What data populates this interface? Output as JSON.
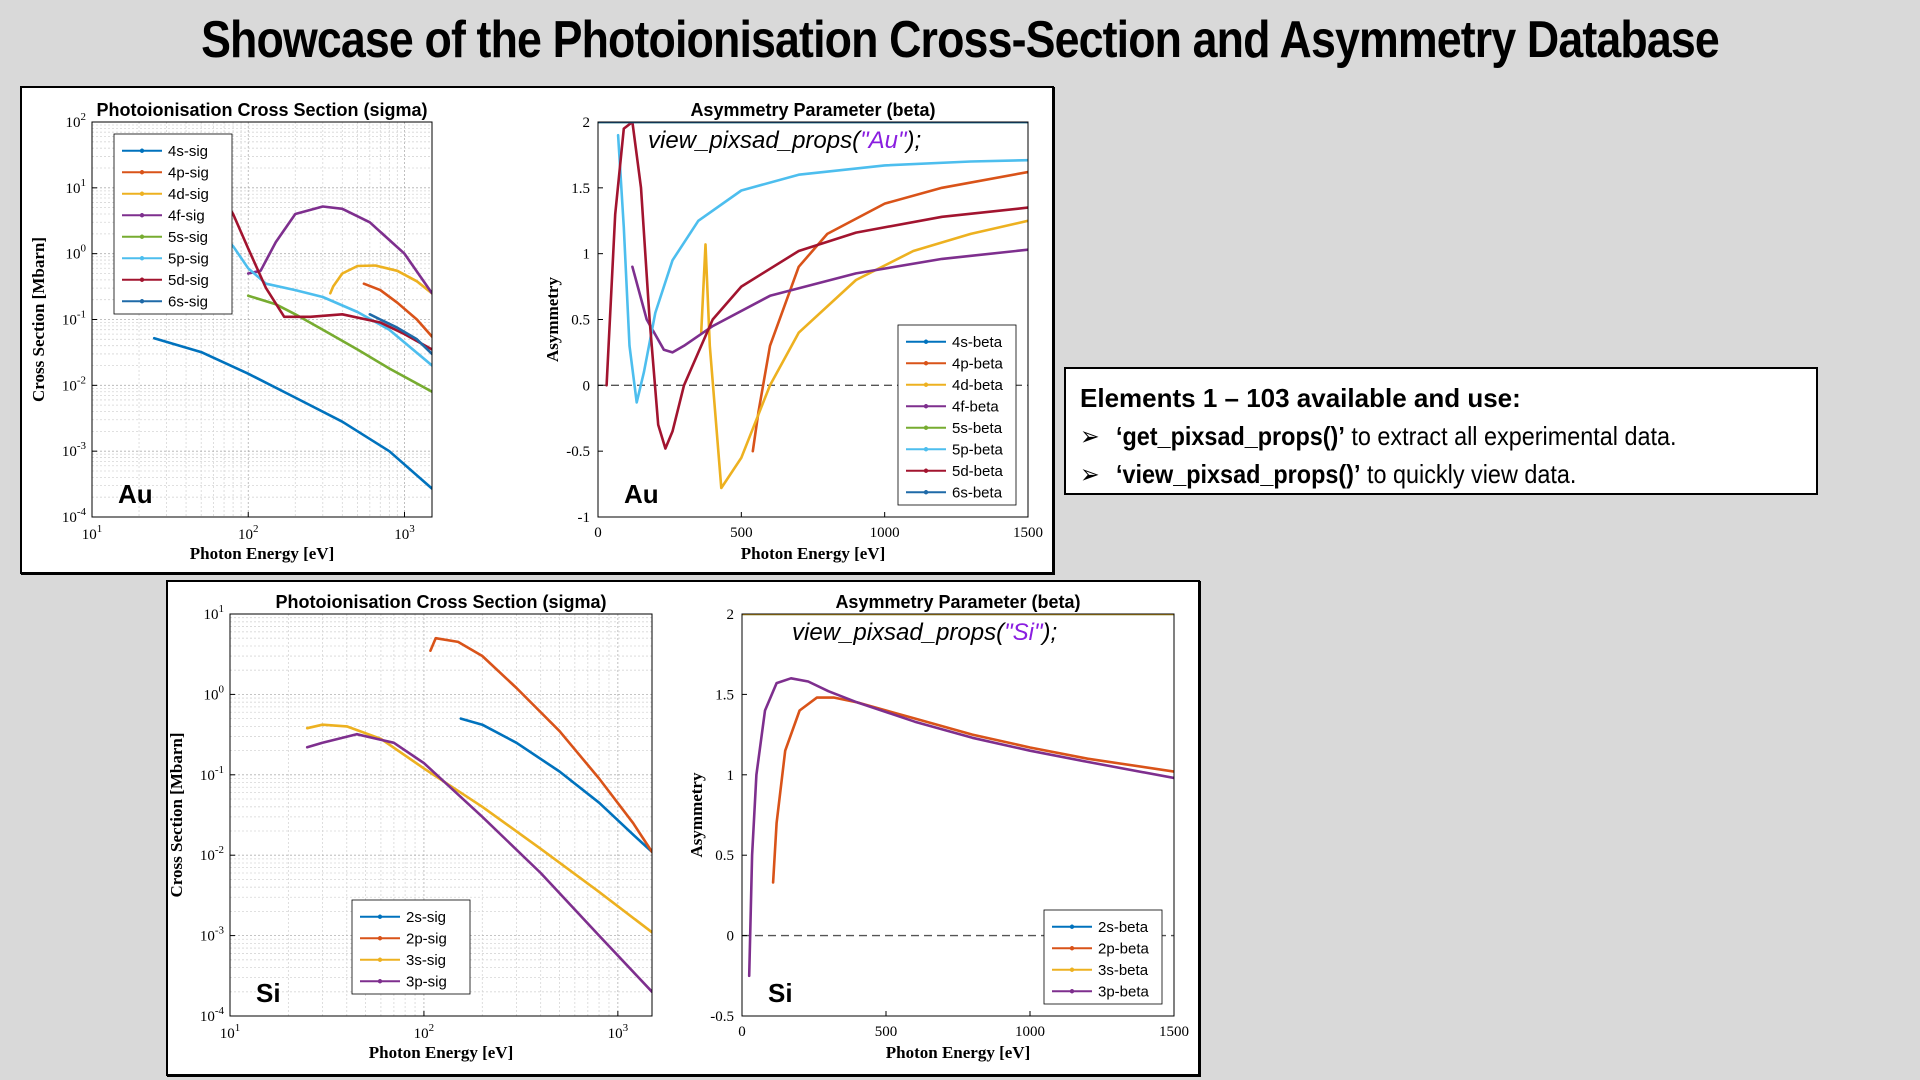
{
  "slide": {
    "title": "Showcase of the Photoionisation Cross-Section and Asymmetry Database"
  },
  "info": {
    "heading": "Elements 1 – 103 available and use:",
    "bullet1_fn": "‘get_pixsad_props()’",
    "bullet1_text": " to extract all experimental data.",
    "bullet2_fn": "‘view_pixsad_props()’",
    "bullet2_text": " to quickly view data.",
    "bullet_symbol": "➢"
  },
  "colors": {
    "series": [
      "#0072bd",
      "#d95319",
      "#edb120",
      "#7e2f8e",
      "#77ac30",
      "#4dbeee",
      "#a2142f",
      "#1f6aa8"
    ],
    "code_string": "#8a1ee0"
  },
  "chart_data": [
    {
      "id": "au-sigma",
      "type": "line",
      "title": "Photoionisation Cross Section (sigma)",
      "xlabel": "Photon Energy [eV]",
      "ylabel": "Cross Section [Mbarn]",
      "xscale": "log",
      "yscale": "log",
      "xlim": [
        10,
        1500
      ],
      "ylim": [
        0.0001,
        100
      ],
      "xticks": [
        10,
        100,
        1000
      ],
      "xtick_labels": [
        "10^1",
        "10^2",
        "10^3"
      ],
      "yticks": [
        0.0001,
        0.001,
        0.01,
        0.1,
        1,
        10,
        100
      ],
      "ytick_labels": [
        "10^-4",
        "10^-3",
        "10^-2",
        "10^-1",
        "10^0",
        "10^1",
        "10^2"
      ],
      "grid": true,
      "legend": "top-left",
      "element_label": "Au",
      "series": [
        {
          "name": "4s-sig",
          "color_index": 0,
          "x": [
            25,
            50,
            100,
            200,
            400,
            800,
            1500
          ],
          "y": [
            0.052,
            0.032,
            0.015,
            0.0065,
            0.0028,
            0.001,
            0.00027
          ]
        },
        {
          "name": "4p-sig",
          "color_index": 1,
          "x": [
            550,
            700,
            900,
            1200,
            1500
          ],
          "y": [
            0.35,
            0.28,
            0.18,
            0.1,
            0.055
          ]
        },
        {
          "name": "4d-sig",
          "color_index": 2,
          "x": [
            335,
            350,
            400,
            500,
            650,
            900,
            1200,
            1500
          ],
          "y": [
            0.25,
            0.32,
            0.5,
            0.65,
            0.66,
            0.55,
            0.38,
            0.25
          ]
        },
        {
          "name": "4f-sig",
          "color_index": 3,
          "x": [
            100,
            120,
            150,
            200,
            300,
            400,
            600,
            1000,
            1500
          ],
          "y": [
            0.5,
            0.55,
            1.5,
            4.0,
            5.2,
            4.8,
            3.0,
            1.0,
            0.25
          ]
        },
        {
          "name": "5s-sig",
          "color_index": 4,
          "x": [
            100,
            150,
            200,
            300,
            500,
            800,
            1500
          ],
          "y": [
            0.23,
            0.17,
            0.12,
            0.07,
            0.035,
            0.018,
            0.008
          ]
        },
        {
          "name": "5p-sig",
          "color_index": 5,
          "x": [
            65,
            80,
            100,
            130,
            200,
            300,
            500,
            800,
            1500
          ],
          "y": [
            2.2,
            1.3,
            0.6,
            0.35,
            0.28,
            0.22,
            0.13,
            0.07,
            0.02
          ]
        },
        {
          "name": "5d-sig",
          "color_index": 6,
          "x": [
            25,
            40,
            60,
            80,
            100,
            130,
            170,
            250,
            400,
            700,
            1000,
            1500
          ],
          "y": [
            35,
            30,
            12,
            4.0,
            1.2,
            0.3,
            0.11,
            0.11,
            0.12,
            0.09,
            0.06,
            0.035
          ]
        },
        {
          "name": "6s-sig",
          "color_index": 7,
          "x": [
            600,
            700,
            900,
            1200,
            1500
          ],
          "y": [
            0.12,
            0.1,
            0.075,
            0.05,
            0.03
          ]
        }
      ]
    },
    {
      "id": "au-beta",
      "type": "line",
      "title": "Asymmetry Parameter (beta)",
      "xlabel": "Photon Energy [eV]",
      "ylabel": "Asymmetry",
      "xlim": [
        0,
        1500
      ],
      "ylim": [
        -1,
        2
      ],
      "xticks": [
        0,
        500,
        1000,
        1500
      ],
      "xtick_labels": [
        "0",
        "500",
        "1000",
        "1500"
      ],
      "yticks": [
        -1,
        -0.5,
        0,
        0.5,
        1,
        1.5,
        2
      ],
      "ytick_labels": [
        "-1",
        "-0.5",
        "0",
        "0.5",
        "1",
        "1.5",
        "2"
      ],
      "grid": false,
      "legend": "bottom-right",
      "zero_line": true,
      "element_label": "Au",
      "code_prefix": "view_pixsad_props(",
      "code_arg": "\"Au\"",
      "code_suffix": ");",
      "series": [
        {
          "name": "4s-beta",
          "color_index": 0,
          "x": [
            0,
            1500
          ],
          "y": [
            2,
            2
          ]
        },
        {
          "name": "4p-beta",
          "color_index": 1,
          "x": [
            540,
            560,
            600,
            700,
            800,
            1000,
            1200,
            1500
          ],
          "y": [
            -0.5,
            -0.2,
            0.3,
            0.9,
            1.15,
            1.38,
            1.5,
            1.62
          ]
        },
        {
          "name": "4d-beta",
          "color_index": 2,
          "x": [
            360,
            375,
            390,
            430,
            500,
            600,
            700,
            900,
            1100,
            1300,
            1500
          ],
          "y": [
            0.4,
            1.07,
            0.3,
            -0.78,
            -0.55,
            0.0,
            0.4,
            0.8,
            1.02,
            1.15,
            1.25
          ]
        },
        {
          "name": "4f-beta",
          "color_index": 3,
          "x": [
            120,
            170,
            230,
            260,
            300,
            400,
            600,
            900,
            1200,
            1500
          ],
          "y": [
            0.9,
            0.5,
            0.27,
            0.25,
            0.3,
            0.45,
            0.68,
            0.85,
            0.96,
            1.03
          ]
        },
        {
          "name": "5s-beta",
          "color_index": 4,
          "x": [
            0,
            1500
          ],
          "y": [
            2,
            2
          ]
        },
        {
          "name": "5p-beta",
          "color_index": 5,
          "x": [
            70,
            90,
            110,
            135,
            160,
            200,
            260,
            350,
            500,
            700,
            1000,
            1300,
            1500
          ],
          "y": [
            1.9,
            1.2,
            0.3,
            -0.13,
            0.1,
            0.55,
            0.95,
            1.25,
            1.48,
            1.6,
            1.67,
            1.7,
            1.71
          ]
        },
        {
          "name": "5d-beta",
          "color_index": 6,
          "x": [
            30,
            60,
            90,
            120,
            150,
            180,
            210,
            235,
            260,
            300,
            400,
            500,
            700,
            900,
            1200,
            1500
          ],
          "y": [
            0.0,
            1.3,
            1.95,
            2.0,
            1.5,
            0.5,
            -0.3,
            -0.48,
            -0.35,
            0.0,
            0.5,
            0.75,
            1.02,
            1.16,
            1.28,
            1.35
          ]
        },
        {
          "name": "6s-beta",
          "color_index": 7,
          "x": [
            0,
            1500
          ],
          "y": [
            2,
            2
          ]
        }
      ]
    },
    {
      "id": "si-sigma",
      "type": "line",
      "title": "Photoionisation Cross Section (sigma)",
      "xlabel": "Photon Energy [eV]",
      "ylabel": "Cross Section [Mbarn]",
      "xscale": "log",
      "yscale": "log",
      "xlim": [
        10,
        1500
      ],
      "ylim": [
        0.0001,
        10
      ],
      "xticks": [
        10,
        100,
        1000
      ],
      "xtick_labels": [
        "10^1",
        "10^2",
        "10^3"
      ],
      "yticks": [
        0.0001,
        0.001,
        0.01,
        0.1,
        1,
        10
      ],
      "ytick_labels": [
        "10^-4",
        "10^-3",
        "10^-2",
        "10^-1",
        "10^0",
        "10^1"
      ],
      "grid": true,
      "legend": "bottom-center",
      "element_label": "Si",
      "series": [
        {
          "name": "2s-sig",
          "color_index": 0,
          "x": [
            155,
            200,
            300,
            500,
            800,
            1200,
            1500
          ],
          "y": [
            0.5,
            0.42,
            0.25,
            0.11,
            0.045,
            0.018,
            0.011
          ]
        },
        {
          "name": "2p-sig",
          "color_index": 1,
          "x": [
            108,
            115,
            150,
            200,
            300,
            500,
            800,
            1200,
            1500
          ],
          "y": [
            3.5,
            5.0,
            4.5,
            3.0,
            1.2,
            0.35,
            0.09,
            0.025,
            0.011
          ]
        },
        {
          "name": "3s-sig",
          "color_index": 2,
          "x": [
            25,
            30,
            40,
            60,
            100,
            200,
            400,
            800,
            1500
          ],
          "y": [
            0.38,
            0.42,
            0.4,
            0.28,
            0.12,
            0.04,
            0.012,
            0.0035,
            0.0011
          ]
        },
        {
          "name": "3p-sig",
          "color_index": 3,
          "x": [
            25,
            30,
            45,
            70,
            100,
            200,
            400,
            800,
            1500
          ],
          "y": [
            0.22,
            0.25,
            0.32,
            0.25,
            0.14,
            0.03,
            0.006,
            0.001,
            0.0002
          ]
        }
      ]
    },
    {
      "id": "si-beta",
      "type": "line",
      "title": "Asymmetry Parameter (beta)",
      "xlabel": "Photon Energy [eV]",
      "ylabel": "Asymmetry",
      "xlim": [
        0,
        1500
      ],
      "ylim": [
        -0.5,
        2
      ],
      "xticks": [
        0,
        500,
        1000,
        1500
      ],
      "xtick_labels": [
        "0",
        "500",
        "1000",
        "1500"
      ],
      "yticks": [
        -0.5,
        0,
        0.5,
        1,
        1.5,
        2
      ],
      "ytick_labels": [
        "-0.5",
        "0",
        "0.5",
        "1",
        "1.5",
        "2"
      ],
      "grid": false,
      "legend": "bottom-right",
      "zero_line": true,
      "element_label": "Si",
      "code_prefix": "view_pixsad_props(",
      "code_arg": "\"Si\"",
      "code_suffix": ");",
      "series": [
        {
          "name": "2s-beta",
          "color_index": 0,
          "x": [
            0,
            1500
          ],
          "y": [
            2,
            2
          ]
        },
        {
          "name": "2p-beta",
          "color_index": 1,
          "x": [
            108,
            120,
            150,
            200,
            260,
            320,
            400,
            600,
            800,
            1000,
            1200,
            1500
          ],
          "y": [
            0.33,
            0.7,
            1.15,
            1.4,
            1.48,
            1.48,
            1.45,
            1.35,
            1.25,
            1.17,
            1.1,
            1.02
          ]
        },
        {
          "name": "3s-beta",
          "color_index": 2,
          "x": [
            0,
            1500
          ],
          "y": [
            2,
            2
          ]
        },
        {
          "name": "3p-beta",
          "color_index": 3,
          "x": [
            25,
            35,
            50,
            80,
            120,
            170,
            230,
            300,
            400,
            600,
            800,
            1000,
            1200,
            1500
          ],
          "y": [
            -0.25,
            0.5,
            1.0,
            1.4,
            1.57,
            1.6,
            1.58,
            1.52,
            1.45,
            1.33,
            1.23,
            1.15,
            1.08,
            0.98
          ]
        }
      ]
    }
  ]
}
